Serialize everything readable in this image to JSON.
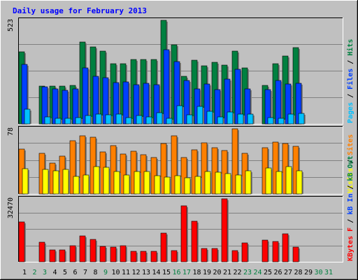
{
  "chart_data": {
    "type": "bar",
    "title": "Daily usage for February 2013",
    "days": [
      "1",
      "2",
      "3",
      "4",
      "5",
      "6",
      "7",
      "8",
      "9",
      "10",
      "11",
      "12",
      "13",
      "14",
      "15",
      "16",
      "17",
      "18",
      "19",
      "20",
      "21",
      "22",
      "23",
      "24",
      "25",
      "26",
      "27",
      "28",
      "29",
      "30",
      "31"
    ],
    "weekend_days": [
      2,
      3,
      9,
      16,
      17,
      23,
      24,
      30,
      31
    ],
    "panels": [
      {
        "id": "hits",
        "max_label": "523",
        "ymax": 523,
        "series": [
          {
            "name": "Hits",
            "color": "#008040",
            "values": [
              365,
              0,
              192,
              192,
              192,
              195,
              412,
              388,
              368,
              305,
              305,
              324,
              324,
              324,
              523,
              398,
              241,
              322,
              294,
              312,
              298,
              366,
              283,
              0,
              193,
              305,
              342,
              385,
              0,
              0,
              0
            ]
          },
          {
            "name": "Files",
            "color": "#0040FF",
            "values": [
              302,
              0,
              188,
              176,
              169,
              175,
              281,
              240,
              234,
              210,
              211,
              199,
              205,
              199,
              374,
              315,
              220,
              178,
              202,
              172,
              225,
              275,
              177,
              0,
              172,
              218,
              200,
              205,
              0,
              0,
              0
            ]
          },
          {
            "name": "Pages",
            "color": "#00C0FF",
            "values": [
              74,
              0,
              34,
              30,
              29,
              31,
              42,
              48,
              46,
              48,
              33,
              41,
              36,
              55,
              30,
              92,
              46,
              90,
              65,
              37,
              61,
              50,
              51,
              0,
              32,
              30,
              49,
              54,
              0,
              0,
              0
            ]
          }
        ]
      },
      {
        "id": "sites",
        "max_label": "78",
        "ymax": 78,
        "series": [
          {
            "name": "Sites",
            "color": "#FF8000",
            "values": [
              54,
              0,
              49,
              37,
              45,
              64,
              70,
              68,
              50,
              58,
              48,
              51,
              47,
              44,
              60,
              70,
              44,
              53,
              61,
              55,
              52,
              78,
              49,
              0,
              55,
              62,
              60,
              57,
              0,
              0,
              0
            ]
          },
          {
            "name": "Visits",
            "color": "#FFFF00",
            "values": [
              30,
              0,
              29,
              28,
              29,
              21,
              23,
              33,
              32,
              27,
              23,
              27,
              27,
              22,
              20,
              22,
              19,
              21,
              27,
              26,
              24,
              23,
              28,
              0,
              31,
              27,
              33,
              28,
              0,
              0,
              0
            ]
          }
        ]
      },
      {
        "id": "kbytes",
        "max_label": "32470",
        "ymax": 32470,
        "series": [
          {
            "name": "KBytes",
            "color": "#FF0000",
            "values": [
              20400,
              0,
              10200,
              6300,
              6100,
              8200,
              13200,
              11700,
              8000,
              7700,
              8400,
              5300,
              5300,
              5300,
              14700,
              5800,
              29000,
              21000,
              6700,
              6700,
              32470,
              5700,
              9700,
              0,
              11100,
              10600,
              14600,
              7600,
              0,
              0,
              0
            ]
          }
        ]
      }
    ],
    "side_labels": [
      {
        "parts": [
          [
            "Pages",
            "#00C0FF"
          ],
          [
            " / ",
            "#000000"
          ],
          [
            "Files",
            "#0040FF"
          ],
          [
            " / ",
            "#000000"
          ],
          [
            "Hits",
            "#008040"
          ]
        ]
      },
      {
        "parts": [
          [
            "Visits",
            "#FFFF00"
          ],
          [
            " / ",
            "#000000"
          ],
          [
            "Sites",
            "#FF8000"
          ]
        ]
      },
      {
        "parts": [
          [
            "KBytes F",
            "#FF0000"
          ],
          [
            " / ",
            "#000000"
          ],
          [
            "kB In",
            "#0040FF"
          ],
          [
            " / ",
            "#000000"
          ],
          [
            "kB Out",
            "#008040"
          ]
        ]
      }
    ],
    "colors": {
      "background": "#C0C0C0",
      "plot_background": "#C0C0C0",
      "grid": "#808080",
      "title": "#0000FF",
      "weekday_label": "#000000",
      "weekend_label": "#008040"
    }
  }
}
